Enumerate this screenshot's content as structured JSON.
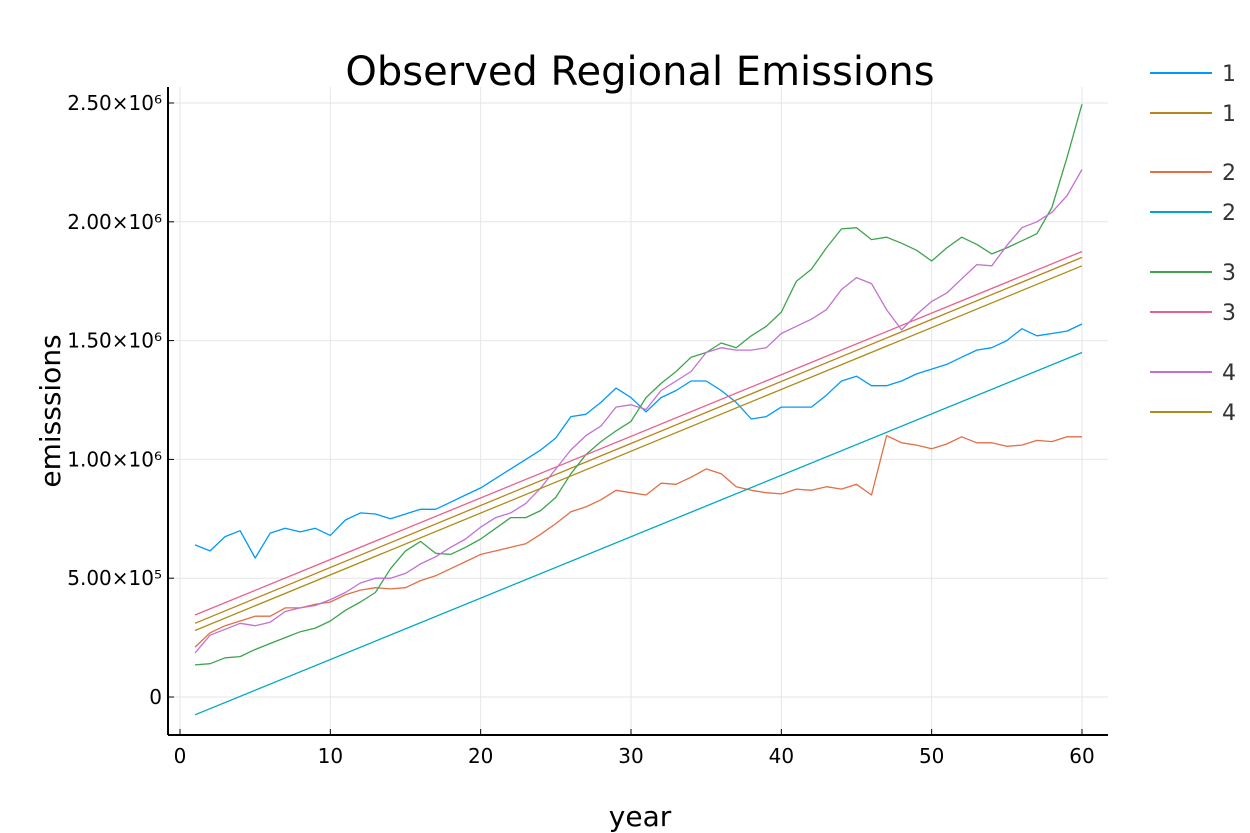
{
  "chart_data": {
    "type": "line",
    "title": "Observed Regional Emissions",
    "xlabel": "year",
    "ylabel": "emisssions",
    "xlim": [
      0,
      60
    ],
    "ylim": [
      -150000,
      2550000
    ],
    "x_ticks": [
      {
        "value": 0,
        "label": "0"
      },
      {
        "value": 10,
        "label": "10"
      },
      {
        "value": 20,
        "label": "20"
      },
      {
        "value": 30,
        "label": "30"
      },
      {
        "value": 40,
        "label": "40"
      },
      {
        "value": 50,
        "label": "50"
      },
      {
        "value": 60,
        "label": "60"
      }
    ],
    "y_ticks": [
      {
        "value": 0,
        "label": "0"
      },
      {
        "value": 500000,
        "label": "5.00×10⁵"
      },
      {
        "value": 1000000,
        "label": "1.00×10⁶"
      },
      {
        "value": 1500000,
        "label": "1.50×10⁶"
      },
      {
        "value": 2000000,
        "label": "2.00×10⁶"
      },
      {
        "value": 2500000,
        "label": "2.50×10⁶"
      }
    ],
    "grid": true,
    "legend_position": "outside-right",
    "series": [
      {
        "name": "1",
        "color": "#009af9",
        "kind": "observed",
        "x": [
          1,
          2,
          3,
          4,
          5,
          6,
          7,
          8,
          9,
          10,
          11,
          12,
          13,
          14,
          15,
          16,
          17,
          18,
          19,
          20,
          21,
          22,
          23,
          24,
          25,
          26,
          27,
          28,
          29,
          30,
          31,
          32,
          33,
          34,
          35,
          36,
          37,
          38,
          39,
          40,
          41,
          42,
          43,
          44,
          45,
          46,
          47,
          48,
          49,
          50,
          51,
          52,
          53,
          54,
          55,
          56,
          57,
          58,
          59,
          60
        ],
        "y": [
          640000,
          615000,
          675000,
          700000,
          585000,
          690000,
          710000,
          695000,
          710000,
          680000,
          745000,
          775000,
          770000,
          750000,
          770000,
          790000,
          790000,
          820000,
          850000,
          880000,
          920000,
          960000,
          1000000,
          1040000,
          1090000,
          1180000,
          1190000,
          1240000,
          1300000,
          1260000,
          1200000,
          1260000,
          1290000,
          1330000,
          1330000,
          1290000,
          1240000,
          1170000,
          1180000,
          1220000,
          1220000,
          1220000,
          1270000,
          1330000,
          1350000,
          1310000,
          1310000,
          1330000,
          1360000,
          1380000,
          1400000,
          1430000,
          1460000,
          1470000,
          1500000,
          1550000,
          1520000,
          1530000,
          1540000,
          1570000
        ]
      },
      {
        "name": "1",
        "color": "#b8851b",
        "kind": "fit",
        "x": [
          1,
          60
        ],
        "y": [
          310000,
          1850000
        ]
      },
      {
        "name": "2",
        "color": "#e26f46",
        "kind": "observed",
        "x": [
          1,
          2,
          3,
          4,
          5,
          6,
          7,
          8,
          9,
          10,
          11,
          12,
          13,
          14,
          15,
          16,
          17,
          18,
          19,
          20,
          21,
          22,
          23,
          24,
          25,
          26,
          27,
          28,
          29,
          30,
          31,
          32,
          33,
          34,
          35,
          36,
          37,
          38,
          39,
          40,
          41,
          42,
          43,
          44,
          45,
          46,
          47,
          48,
          49,
          50,
          51,
          52,
          53,
          54,
          55,
          56,
          57,
          58,
          59,
          60
        ],
        "y": [
          210000,
          270000,
          300000,
          320000,
          340000,
          340000,
          375000,
          375000,
          390000,
          400000,
          430000,
          450000,
          460000,
          455000,
          460000,
          490000,
          510000,
          540000,
          570000,
          600000,
          615000,
          630000,
          645000,
          685000,
          730000,
          780000,
          800000,
          830000,
          870000,
          860000,
          850000,
          900000,
          895000,
          925000,
          960000,
          940000,
          885000,
          870000,
          860000,
          855000,
          875000,
          870000,
          885000,
          875000,
          895000,
          850000,
          1100000,
          1070000,
          1060000,
          1045000,
          1065000,
          1095000,
          1070000,
          1070000,
          1055000,
          1060000,
          1080000,
          1075000,
          1095000,
          1095000
        ]
      },
      {
        "name": "2",
        "color": "#00a8c1",
        "kind": "fit",
        "x": [
          1,
          60
        ],
        "y": [
          -75000,
          1450000
        ]
      },
      {
        "name": "3",
        "color": "#3da44d",
        "kind": "observed",
        "x": [
          1,
          2,
          3,
          4,
          5,
          6,
          7,
          8,
          9,
          10,
          11,
          12,
          13,
          14,
          15,
          16,
          17,
          18,
          19,
          20,
          21,
          22,
          23,
          24,
          25,
          26,
          27,
          28,
          29,
          30,
          31,
          32,
          33,
          34,
          35,
          36,
          37,
          38,
          39,
          40,
          41,
          42,
          43,
          44,
          45,
          46,
          47,
          48,
          49,
          50,
          51,
          52,
          53,
          54,
          55,
          56,
          57,
          58,
          59,
          60
        ],
        "y": [
          135000,
          140000,
          165000,
          170000,
          200000,
          225000,
          250000,
          275000,
          290000,
          320000,
          365000,
          400000,
          440000,
          540000,
          615000,
          655000,
          605000,
          600000,
          630000,
          665000,
          710000,
          755000,
          755000,
          785000,
          840000,
          940000,
          1020000,
          1075000,
          1120000,
          1160000,
          1260000,
          1320000,
          1370000,
          1430000,
          1450000,
          1490000,
          1470000,
          1520000,
          1560000,
          1620000,
          1750000,
          1800000,
          1890000,
          1970000,
          1975000,
          1925000,
          1935000,
          1910000,
          1880000,
          1835000,
          1890000,
          1935000,
          1905000,
          1865000,
          1890000,
          1920000,
          1950000,
          2060000,
          2270000,
          2495000
        ]
      },
      {
        "name": "3",
        "color": "#e8618c",
        "kind": "fit",
        "x": [
          1,
          60
        ],
        "y": [
          345000,
          1875000
        ]
      },
      {
        "name": "4",
        "color": "#c271d2",
        "kind": "observed",
        "x": [
          1,
          2,
          3,
          4,
          5,
          6,
          7,
          8,
          9,
          10,
          11,
          12,
          13,
          14,
          15,
          16,
          17,
          18,
          19,
          20,
          21,
          22,
          23,
          24,
          25,
          26,
          27,
          28,
          29,
          30,
          31,
          32,
          33,
          34,
          35,
          36,
          37,
          38,
          39,
          40,
          41,
          42,
          43,
          44,
          45,
          46,
          47,
          48,
          49,
          50,
          51,
          52,
          53,
          54,
          55,
          56,
          57,
          58,
          59,
          60
        ],
        "y": [
          185000,
          260000,
          285000,
          310000,
          300000,
          315000,
          360000,
          375000,
          385000,
          410000,
          440000,
          480000,
          500000,
          500000,
          520000,
          560000,
          590000,
          630000,
          665000,
          715000,
          755000,
          775000,
          815000,
          880000,
          960000,
          1040000,
          1100000,
          1140000,
          1220000,
          1230000,
          1210000,
          1290000,
          1330000,
          1370000,
          1450000,
          1470000,
          1460000,
          1460000,
          1470000,
          1530000,
          1560000,
          1590000,
          1630000,
          1715000,
          1765000,
          1740000,
          1630000,
          1545000,
          1610000,
          1665000,
          1700000,
          1760000,
          1820000,
          1815000,
          1900000,
          1975000,
          2000000,
          2040000,
          2110000,
          2220000
        ]
      },
      {
        "name": "4",
        "color": "#ac8d18",
        "kind": "fit",
        "x": [
          1,
          60
        ],
        "y": [
          280000,
          1815000
        ]
      }
    ]
  }
}
